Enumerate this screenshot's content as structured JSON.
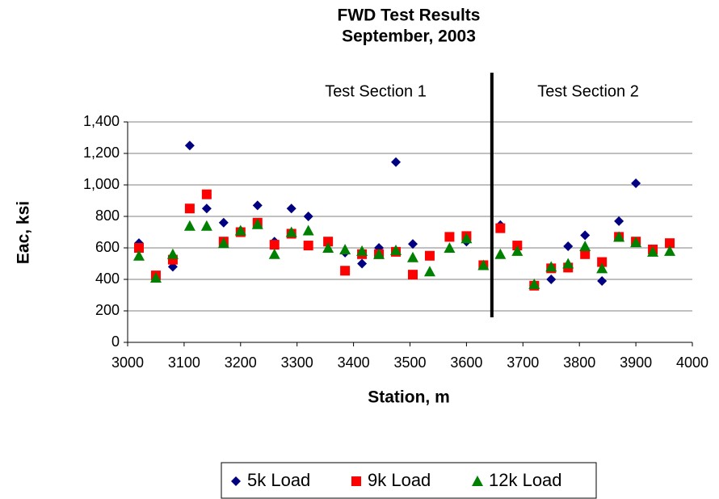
{
  "chart_data": {
    "type": "scatter",
    "title": "FWD Test Results",
    "subtitle": "September, 2003",
    "x_label": "Station, m",
    "y_label": "Eac, ksi",
    "annotations": [
      "Test Section 1",
      "Test Section 2"
    ],
    "divider_x": 3645,
    "x": [
      3020,
      3050,
      3080,
      3110,
      3140,
      3170,
      3200,
      3230,
      3260,
      3290,
      3320,
      3355,
      3385,
      3415,
      3445,
      3475,
      3505,
      3535,
      3570,
      3600,
      3630,
      3660,
      3690,
      3720,
      3750,
      3780,
      3810,
      3840,
      3870,
      3900,
      3930,
      3960
    ],
    "series": [
      {
        "name": "5k Load",
        "color": "#000080",
        "marker": "diamond",
        "values": [
          630,
          410,
          480,
          1250,
          850,
          760,
          710,
          870,
          640,
          850,
          800,
          630,
          570,
          500,
          600,
          1145,
          625,
          550,
          null,
          640,
          490,
          745,
          610,
          360,
          400,
          610,
          680,
          390,
          770,
          1010,
          580,
          620
        ]
      },
      {
        "name": "9k Load",
        "color": "#ff0000",
        "marker": "square",
        "values": [
          600,
          425,
          525,
          850,
          940,
          640,
          700,
          760,
          620,
          690,
          615,
          640,
          455,
          560,
          560,
          575,
          430,
          550,
          670,
          675,
          490,
          725,
          615,
          360,
          470,
          475,
          560,
          510,
          670,
          640,
          590,
          630
        ]
      },
      {
        "name": "12k Load",
        "color": "#008000",
        "marker": "triangle",
        "values": [
          550,
          410,
          560,
          740,
          740,
          630,
          710,
          750,
          560,
          700,
          710,
          600,
          590,
          580,
          560,
          585,
          540,
          450,
          600,
          660,
          490,
          560,
          580,
          370,
          480,
          500,
          610,
          470,
          670,
          635,
          575,
          580
        ]
      }
    ],
    "xlim": [
      3000,
      4000
    ],
    "xticks": [
      3000,
      3100,
      3200,
      3300,
      3400,
      3500,
      3600,
      3700,
      3800,
      3900,
      4000
    ],
    "ylim": [
      0,
      1400
    ],
    "yticks": [
      0,
      200,
      400,
      600,
      800,
      {
        "value": 1000,
        "label": "1,000"
      },
      {
        "value": 1200,
        "label": "1,200"
      },
      {
        "value": 1400,
        "label": "1,400"
      }
    ],
    "grid": true,
    "legend": "bottom"
  }
}
